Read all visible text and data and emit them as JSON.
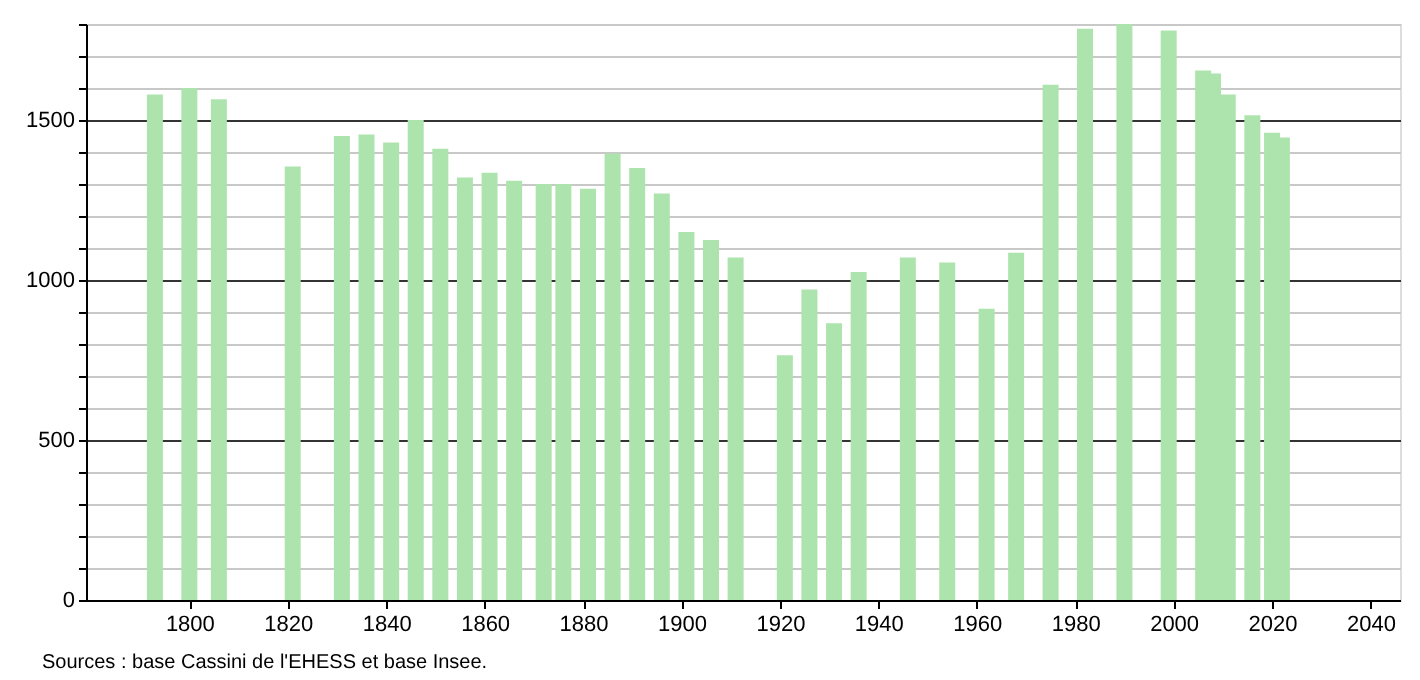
{
  "chart_data": {
    "type": "bar",
    "color": "#ade4ad",
    "x": [
      1793,
      1800,
      1806,
      1821,
      1831,
      1836,
      1841,
      1846,
      1851,
      1856,
      1861,
      1866,
      1872,
      1876,
      1881,
      1886,
      1891,
      1896,
      1901,
      1906,
      1911,
      1921,
      1926,
      1931,
      1936,
      1946,
      1954,
      1962,
      1968,
      1975,
      1982,
      1990,
      1999,
      2006,
      2008,
      2011,
      2016,
      2020,
      2022
    ],
    "values": [
      1580,
      1600,
      1565,
      1355,
      1450,
      1455,
      1430,
      1500,
      1410,
      1320,
      1335,
      1310,
      1300,
      1300,
      1285,
      1395,
      1350,
      1270,
      1150,
      1125,
      1070,
      765,
      970,
      865,
      1025,
      1070,
      1055,
      910,
      1085,
      1610,
      1785,
      1800,
      1780,
      1655,
      1645,
      1580,
      1515,
      1460,
      1445
    ],
    "xlim": [
      1779,
      2046
    ],
    "xticks": [
      1800,
      1820,
      1840,
      1860,
      1880,
      1900,
      1920,
      1940,
      1960,
      1980,
      2000,
      2020,
      2040
    ],
    "ylim": [
      0,
      1800
    ],
    "yticks": [
      0,
      {
        "value": 100,
        "label": null
      },
      {
        "value": 200,
        "label": null
      },
      {
        "value": 300,
        "label": null
      },
      {
        "value": 400,
        "label": null
      },
      500,
      {
        "value": 600,
        "label": null
      },
      {
        "value": 700,
        "label": null
      },
      {
        "value": 800,
        "label": null
      },
      {
        "value": 900,
        "label": null
      },
      1000,
      {
        "value": 1100,
        "label": null
      },
      {
        "value": 1200,
        "label": null
      },
      {
        "value": 1300,
        "label": null
      },
      {
        "value": 1400,
        "label": null
      },
      1500,
      {
        "value": 1600,
        "label": null
      },
      {
        "value": 1700,
        "label": null
      },
      {
        "value": 1800,
        "label": null
      }
    ],
    "grid": "y",
    "annotations": [
      "Sources : base Cassini de l'EHESS et base Insee."
    ]
  }
}
